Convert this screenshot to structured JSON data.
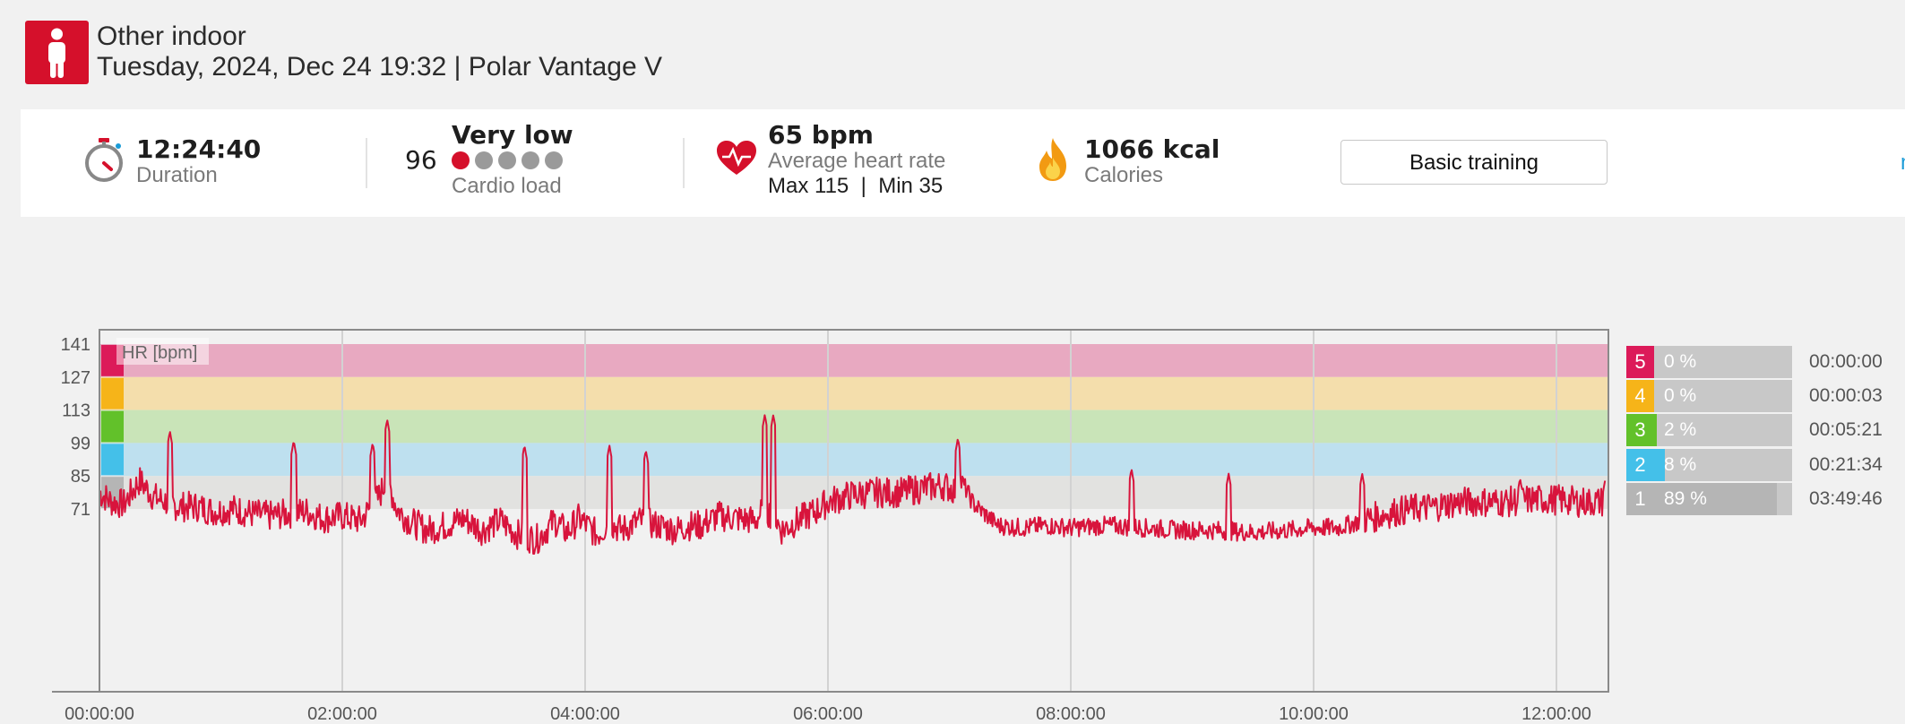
{
  "header": {
    "sport": "Other indoor",
    "date_device": "Tuesday, 2024, Dec 24 19:32 | Polar Vantage V",
    "sport_icon": "person-standing-icon",
    "accent": "#d5102b"
  },
  "summary": {
    "duration": {
      "value": "12:24:40",
      "label": "Duration",
      "icon": "stopwatch-icon"
    },
    "cardio_load": {
      "value": "96",
      "level": "Very low",
      "label": "Cardio load",
      "dots_total": 5,
      "dots_filled": 1
    },
    "heart_rate": {
      "value": "65 bpm",
      "label": "Average heart rate",
      "max_label": "Max",
      "max": "115",
      "separator": "|",
      "min_label": "Min",
      "min": "35",
      "icon": "heart-icon"
    },
    "calories": {
      "value": "1066 kcal",
      "label": "Calories",
      "icon": "flame-icon"
    },
    "benefit_button": "Basic training",
    "more_link": "m"
  },
  "chart_data": {
    "type": "line",
    "series": [
      {
        "name": "HR [bpm]",
        "color": "#d8143c"
      }
    ],
    "y_ticks": [
      71,
      85,
      99,
      113,
      127,
      141
    ],
    "x_ticks": [
      "00:00:00",
      "02:00:00",
      "04:00:00",
      "06:00:00",
      "08:00:00",
      "10:00:00",
      "12:00:00"
    ],
    "x_range_hours": [
      0,
      12.4
    ],
    "zones": [
      {
        "zone": "5",
        "min": 127,
        "max": 141,
        "color": "#e8a9c1",
        "tag": "#dc1a59"
      },
      {
        "zone": "4",
        "min": 113,
        "max": 127,
        "color": "#f4deac",
        "tag": "#f6b419"
      },
      {
        "zone": "3",
        "min": 99,
        "max": 113,
        "color": "#c9e4b8",
        "tag": "#62c12a"
      },
      {
        "zone": "2",
        "min": 85,
        "max": 99,
        "color": "#bee0ef",
        "tag": "#44c0e9"
      },
      {
        "zone": "1",
        "min": 71,
        "max": 85,
        "color": "#e2e2e0",
        "tag": "#b5b5b5"
      }
    ],
    "hr_samples": {
      "x_hours": [
        0,
        0.1,
        0.2,
        0.33,
        0.45,
        0.55,
        0.65,
        0.8,
        0.95,
        1.1,
        1.25,
        1.4,
        1.55,
        1.7,
        1.85,
        2.0,
        2.15,
        2.3,
        2.37,
        2.45,
        2.55,
        2.7,
        2.85,
        3.0,
        3.15,
        3.3,
        3.45,
        3.6,
        3.75,
        3.85,
        3.95,
        4.1,
        4.2,
        4.3,
        4.45,
        4.6,
        4.75,
        4.85,
        4.95,
        5.1,
        5.25,
        5.4,
        5.48,
        5.55,
        5.62,
        5.75,
        5.9,
        6.0,
        6.2,
        6.4,
        6.6,
        6.8,
        6.95,
        7.05,
        7.1,
        7.2,
        7.4,
        7.6,
        7.8,
        8.0,
        8.3,
        8.6,
        8.9,
        9.2,
        9.5,
        9.8,
        10.0,
        10.2,
        10.4,
        10.6,
        10.8,
        11.0,
        11.2,
        11.4,
        11.6,
        11.8,
        12.0,
        12.2,
        12.4
      ],
      "bpm": [
        78,
        74,
        73,
        83,
        76,
        74,
        72,
        72,
        70,
        71,
        69,
        68,
        69,
        70,
        67,
        68,
        66,
        76,
        84,
        71,
        66,
        62,
        64,
        67,
        62,
        66,
        60,
        58,
        66,
        61,
        67,
        60,
        65,
        62,
        66,
        64,
        62,
        64,
        64,
        68,
        67,
        66,
        71,
        68,
        62,
        66,
        70,
        74,
        77,
        78,
        78,
        80,
        81,
        79,
        83,
        73,
        64,
        63,
        64,
        63,
        64,
        63,
        62,
        62,
        61,
        62,
        63,
        63,
        66,
        69,
        71,
        72,
        74,
        74,
        74,
        75,
        75,
        74,
        74
      ]
    },
    "zone_summary": [
      {
        "zone": "5",
        "pct": "0 %",
        "time": "00:00:00",
        "fraction": 0
      },
      {
        "zone": "4",
        "pct": "0 %",
        "time": "00:00:03",
        "fraction": 0
      },
      {
        "zone": "3",
        "pct": "2 %",
        "time": "00:05:21",
        "fraction": 0.02
      },
      {
        "zone": "2",
        "pct": "8 %",
        "time": "00:21:34",
        "fraction": 0.08
      },
      {
        "zone": "1",
        "pct": "89 %",
        "time": "03:49:46",
        "fraction": 0.89
      }
    ],
    "grid": true,
    "legend_position": "top-left"
  }
}
